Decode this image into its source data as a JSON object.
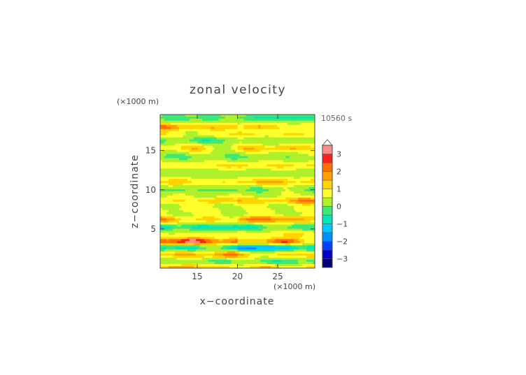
{
  "chart_data": {
    "type": "heatmap",
    "title": "zonal velocity",
    "xlabel": "x−coordinate",
    "ylabel": "z−coordinate",
    "x_unit": "(×1000 m)",
    "y_unit": "(×1000 m)",
    "time_label": "10560 s",
    "xlim": [
      10.4,
      29.6
    ],
    "ylim": [
      0,
      19.6
    ],
    "x_ticks": [
      15,
      20,
      25
    ],
    "y_ticks": [
      5,
      10,
      15
    ],
    "x_tick_labels": [
      "15",
      "20",
      "25"
    ],
    "y_tick_labels": [
      "5",
      "10",
      "15"
    ],
    "colorbar": {
      "tick_values": [
        3,
        2,
        1,
        0,
        -1,
        -2,
        -3
      ],
      "tick_labels": [
        "3",
        "2",
        "1",
        "0",
        "−1",
        "−2",
        "−3"
      ],
      "levels": [
        -3.5,
        -3,
        -2.5,
        -2,
        -1.5,
        -1,
        -0.5,
        0,
        0.5,
        1,
        1.5,
        2,
        2.5,
        3,
        3.5
      ],
      "colors": [
        "#00007a",
        "#0000c8",
        "#0040ff",
        "#0090ff",
        "#00c8ff",
        "#00e6b4",
        "#3ce878",
        "#aef02a",
        "#ffff2c",
        "#ffd400",
        "#ffa000",
        "#ff6e00",
        "#ff1e1e",
        "#ff8c8c",
        "#ffb8b8"
      ],
      "extend": "max"
    },
    "field": {
      "background": 0.4,
      "bands": [
        {
          "z": 19.2,
          "v": -0.7
        },
        {
          "z": 18.0,
          "v": 0.9
        },
        {
          "z": 17.1,
          "v": 0.5
        },
        {
          "z": 16.3,
          "v": -0.4
        },
        {
          "z": 15.3,
          "v": 0.7
        },
        {
          "z": 14.2,
          "v": -0.3
        },
        {
          "z": 13.1,
          "v": 0.6
        },
        {
          "z": 12.1,
          "v": -0.2
        },
        {
          "z": 11.0,
          "v": 0.8
        },
        {
          "z": 10.0,
          "v": -0.4
        },
        {
          "z": 8.6,
          "v": 0.9
        },
        {
          "z": 7.4,
          "v": 0.2
        },
        {
          "z": 6.2,
          "v": 1.1
        },
        {
          "z": 5.2,
          "v": -0.9
        },
        {
          "z": 4.3,
          "v": 0.4
        },
        {
          "z": 3.4,
          "v": 1.7
        },
        {
          "z": 2.6,
          "v": -1.4
        },
        {
          "z": 1.7,
          "v": 1.0
        },
        {
          "z": 0.8,
          "v": -0.5
        },
        {
          "z": 0.1,
          "v": 0.8
        }
      ]
    }
  }
}
